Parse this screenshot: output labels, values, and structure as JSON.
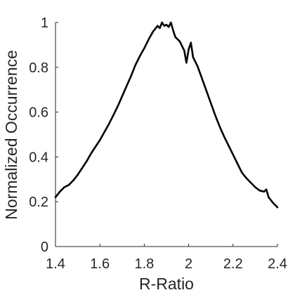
{
  "chart_data": {
    "type": "line",
    "title": "",
    "xlabel": "R-Ratio",
    "ylabel": "Normalized Occurrence",
    "xlim": [
      1.4,
      2.4
    ],
    "ylim": [
      0,
      1
    ],
    "xticks": [
      "1.4",
      "1.6",
      "1.8",
      "2",
      "2.2",
      "2.4"
    ],
    "yticks": [
      "0",
      "0.2",
      "0.4",
      "0.6",
      "0.8",
      "1"
    ],
    "grid": false,
    "line_color": "#000000",
    "series": [
      {
        "x": [
          1.4,
          1.42,
          1.44,
          1.46,
          1.48,
          1.5,
          1.52,
          1.54,
          1.56,
          1.58,
          1.6,
          1.62,
          1.64,
          1.66,
          1.68,
          1.7,
          1.72,
          1.74,
          1.76,
          1.78,
          1.8,
          1.82,
          1.84,
          1.86,
          1.87,
          1.88,
          1.89,
          1.9,
          1.91,
          1.92,
          1.93,
          1.94,
          1.96,
          1.98,
          1.99,
          2.0,
          2.01,
          2.02,
          2.04,
          2.06,
          2.08,
          2.1,
          2.12,
          2.14,
          2.16,
          2.18,
          2.2,
          2.22,
          2.24,
          2.26,
          2.28,
          2.3,
          2.32,
          2.34,
          2.35,
          2.36,
          2.38,
          2.4
        ],
        "y": [
          0.22,
          0.245,
          0.265,
          0.275,
          0.295,
          0.32,
          0.35,
          0.38,
          0.415,
          0.445,
          0.475,
          0.51,
          0.545,
          0.585,
          0.625,
          0.67,
          0.715,
          0.76,
          0.81,
          0.85,
          0.885,
          0.925,
          0.96,
          0.985,
          0.975,
          1.0,
          0.985,
          0.99,
          0.98,
          1.0,
          0.965,
          0.935,
          0.915,
          0.875,
          0.82,
          0.88,
          0.91,
          0.845,
          0.805,
          0.75,
          0.695,
          0.64,
          0.585,
          0.535,
          0.49,
          0.45,
          0.41,
          0.37,
          0.33,
          0.305,
          0.285,
          0.265,
          0.25,
          0.245,
          0.255,
          0.22,
          0.195,
          0.175
        ]
      }
    ]
  }
}
